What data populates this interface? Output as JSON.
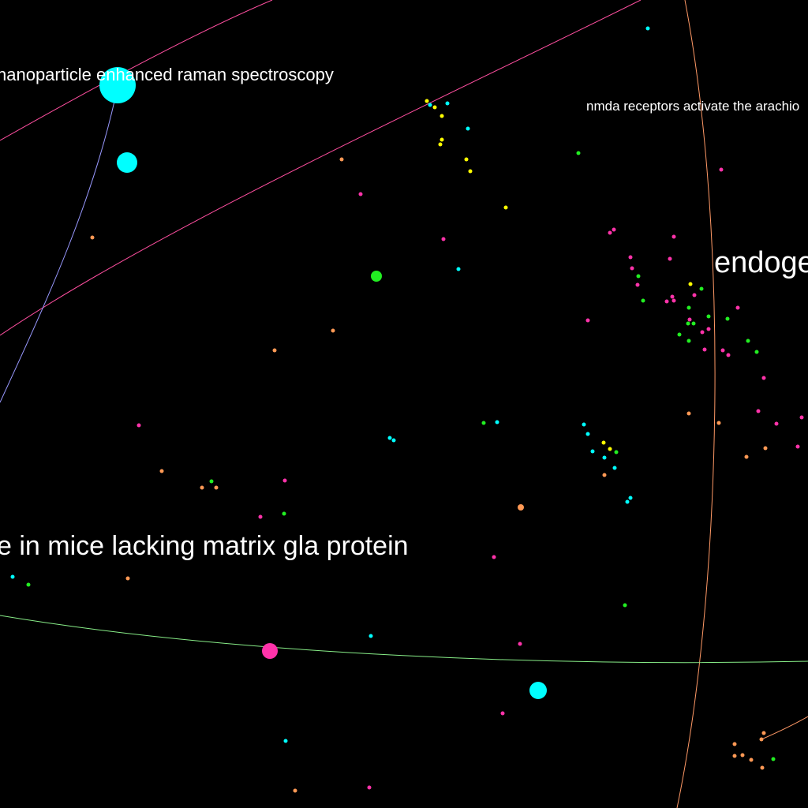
{
  "labels": {
    "raman": "nanoparticle enhanced raman spectroscopy",
    "nmda": "nmda receptors activate the arachio",
    "endogenous": "endoge",
    "mgp": "e in mice lacking matrix gla protein"
  },
  "colors": {
    "background": "#000000",
    "label": "#ffffff",
    "cyan": "#00ffff",
    "yellow": "#ffff00",
    "magenta": "#ff33aa",
    "green": "#22ee22",
    "orange": "#ff9955",
    "link_pink": "#ff4fa0",
    "link_orange": "#ff9966",
    "link_blue": "#9999ff",
    "link_green": "#88ee88"
  }
}
